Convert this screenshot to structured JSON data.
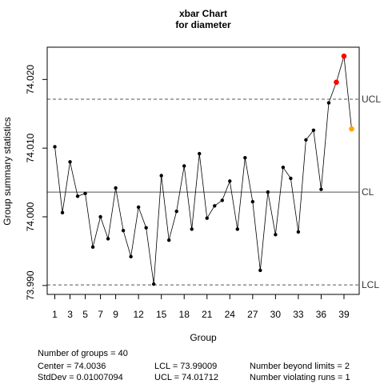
{
  "chart_data": {
    "type": "line",
    "title": "xbar Chart",
    "subtitle": "for diameter",
    "xlabel": "Group",
    "ylabel": "Group summary statistics",
    "xlim": [
      0,
      41
    ],
    "ylim": [
      73.9887,
      74.0247
    ],
    "x_ticks": [
      1,
      3,
      5,
      7,
      9,
      12,
      15,
      18,
      21,
      24,
      27,
      30,
      33,
      36,
      39
    ],
    "x_tick_labels": [
      "1",
      "3",
      "5",
      "7",
      "9",
      "12",
      "15",
      "18",
      "21",
      "24",
      "27",
      "30",
      "33",
      "36",
      "39"
    ],
    "y_ticks": [
      73.99,
      74.0,
      74.01,
      74.02
    ],
    "y_tick_labels": [
      "73.990",
      "74.000",
      "74.010",
      "74.020"
    ],
    "series": [
      {
        "x": [
          1,
          2,
          3,
          4,
          5,
          6,
          7,
          8,
          9,
          10,
          11,
          12,
          13,
          14,
          15,
          16,
          17,
          18,
          19,
          20,
          21,
          22,
          23,
          24,
          25,
          26,
          27,
          28,
          29,
          30,
          31,
          32,
          33,
          34,
          35,
          36,
          37,
          38,
          39,
          40
        ],
        "values": [
          74.0102,
          74.0006,
          74.008,
          74.003,
          74.0034,
          73.9956,
          74.0,
          73.9968,
          74.0042,
          73.998,
          73.9942,
          74.0014,
          73.9984,
          73.9902,
          74.006,
          73.9966,
          74.0008,
          74.0074,
          73.9982,
          74.0092,
          73.9998,
          74.0016,
          74.0024,
          74.0052,
          73.9982,
          74.0086,
          74.0022,
          73.9922,
          74.0036,
          73.9974,
          74.0072,
          74.0056,
          73.9978,
          74.0112,
          74.0126,
          74.004,
          74.0166,
          74.0196,
          74.0234,
          74.0128
        ]
      }
    ],
    "point_colors": {
      "normal": "#000000",
      "beyond_limits": "#ff0000",
      "violating_runs": "#ffa500"
    },
    "beyond_limits_groups": [
      38,
      39
    ],
    "violating_runs_groups": [
      40
    ],
    "reference_lines": [
      {
        "label": "UCL",
        "value": 74.01712,
        "style": "dashed"
      },
      {
        "label": "CL",
        "value": 74.0036,
        "style": "solid"
      },
      {
        "label": "LCL",
        "value": 73.99009,
        "style": "dashed"
      }
    ],
    "grid": false
  },
  "stats": {
    "groups": "Number of groups = 40",
    "center": "Center = 74.0036",
    "stddev": "StdDev = 0.01007094",
    "lcl": "LCL = 73.99009",
    "ucl": "UCL = 74.01712",
    "beyond": "Number beyond limits = 2",
    "violating": "Number violating runs = 1"
  }
}
